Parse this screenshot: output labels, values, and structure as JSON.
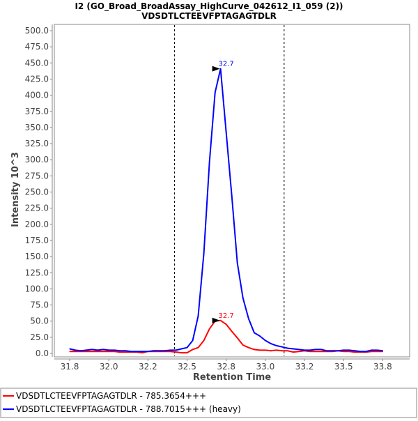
{
  "chart_data": {
    "type": "line",
    "title": "I2 (GO_Broad_BroadAssay_HighCurve_042612_I1_059 (2))",
    "subtitle": "VDSDTLCTEEVFPTAGAGTDLR",
    "xlabel": "Retention Time",
    "ylabel": "Intensity 10^3",
    "xlim": [
      31.65,
      33.92
    ],
    "ylim": [
      0,
      500
    ],
    "x_ticks": [
      31.75,
      32.0,
      32.25,
      32.5,
      32.75,
      33.0,
      33.25,
      33.5,
      33.75
    ],
    "x_tick_labels": [
      "31.8",
      "32.0",
      "32.2",
      "32.5",
      "32.8",
      "33.0",
      "33.2",
      "33.5",
      "33.8"
    ],
    "y_ticks": [
      0,
      25,
      50,
      75,
      100,
      125,
      150,
      175,
      200,
      225,
      250,
      275,
      300,
      325,
      350,
      375,
      400,
      425,
      450,
      475,
      500
    ],
    "y_tick_labels": [
      "0.0",
      "25.0",
      "50.0",
      "75.0",
      "100.0",
      "125.0",
      "150.0",
      "175.0",
      "200.0",
      "225.0",
      "250.0",
      "275.0",
      "300.0",
      "325.0",
      "350.0",
      "375.0",
      "400.0",
      "425.0",
      "450.0",
      "475.0",
      "500.0"
    ],
    "grid": false,
    "integration_bounds": [
      32.42,
      33.12
    ],
    "x": [
      31.75,
      31.786,
      31.821,
      31.857,
      31.893,
      31.929,
      31.964,
      32.0,
      32.036,
      32.071,
      32.107,
      32.143,
      32.179,
      32.214,
      32.25,
      32.286,
      32.321,
      32.357,
      32.393,
      32.429,
      32.464,
      32.5,
      32.536,
      32.571,
      32.607,
      32.643,
      32.679,
      32.714,
      32.75,
      32.786,
      32.821,
      32.857,
      32.893,
      32.929,
      32.964,
      33.0,
      33.036,
      33.071,
      33.107,
      33.143,
      33.179,
      33.214,
      33.25,
      33.286,
      33.321,
      33.357,
      33.393,
      33.429,
      33.464,
      33.5,
      33.536,
      33.571,
      33.607,
      33.643,
      33.679,
      33.714,
      33.75
    ],
    "series": [
      {
        "name": "VDSDTLCTEEVFPTAGAGTDLR - 785.3654+++",
        "color": "#ff0000",
        "peak_label": "32.7",
        "peak_x": 32.714,
        "values": [
          3,
          3,
          3,
          3,
          3,
          3,
          3,
          3,
          3,
          2,
          2,
          2,
          2,
          1,
          3,
          3,
          3,
          3,
          3,
          2,
          1,
          1,
          6,
          9,
          20,
          38,
          50,
          51,
          45,
          34,
          24,
          13,
          9,
          6,
          5,
          5,
          4,
          5,
          4,
          4,
          2,
          3,
          4,
          3,
          3,
          3,
          3,
          3,
          4,
          3,
          3,
          2,
          2,
          2,
          3,
          3,
          3
        ]
      },
      {
        "name": "VDSDTLCTEEVFPTAGAGTDLR - 788.7015+++ (heavy)",
        "color": "#0000ff",
        "peak_label": "32.7",
        "peak_x": 32.714,
        "values": [
          7,
          5,
          4,
          5,
          6,
          5,
          6,
          5,
          5,
          4,
          4,
          3,
          3,
          3,
          3,
          4,
          4,
          4,
          5,
          5,
          7,
          9,
          20,
          58,
          155,
          297,
          404,
          441,
          342,
          243,
          140,
          86,
          54,
          32,
          27,
          20,
          15,
          12,
          10,
          8,
          7,
          6,
          5,
          5,
          6,
          6,
          4,
          4,
          4,
          5,
          5,
          4,
          3,
          3,
          5,
          5,
          4
        ]
      }
    ],
    "legend_position": "bottom"
  }
}
